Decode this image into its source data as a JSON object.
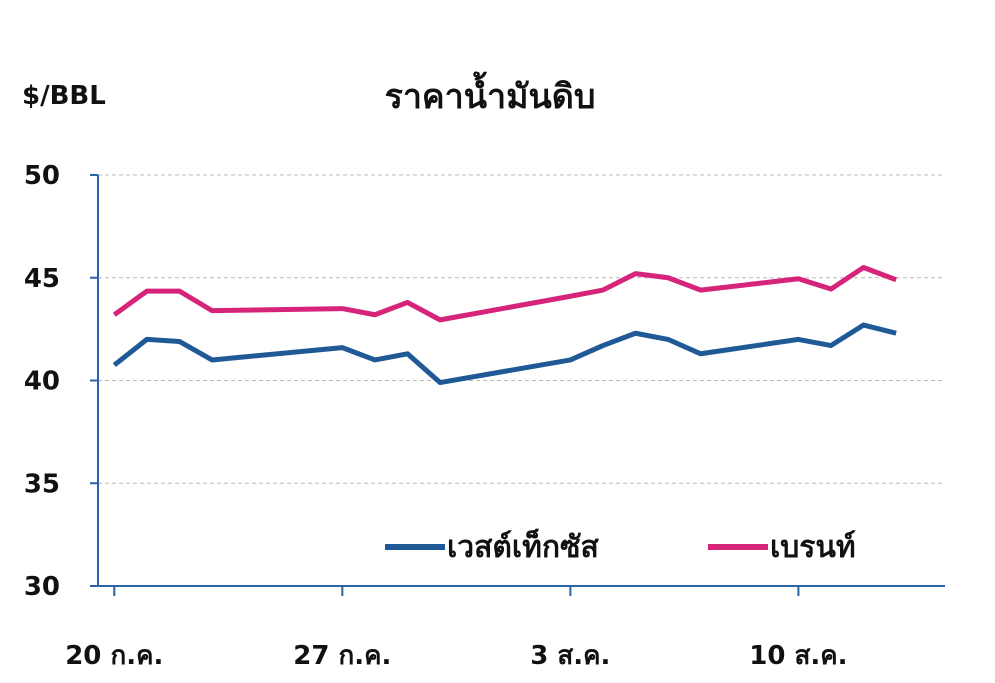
{
  "chart_data": {
    "type": "line",
    "title": "ราคาน้ำมันดิบ",
    "y_label": "$/BBL",
    "x": [
      20,
      21,
      22,
      23,
      27,
      28,
      29,
      30,
      34,
      35,
      36,
      37,
      38,
      41,
      42,
      43,
      44
    ],
    "xlim": [
      19.5,
      45.5
    ],
    "xticks": [
      {
        "value": 20,
        "label": "20 ก.ค."
      },
      {
        "value": 27,
        "label": "27 ก.ค."
      },
      {
        "value": 34,
        "label": "3 ส.ค."
      },
      {
        "value": 41,
        "label": "10 ส.ค."
      }
    ],
    "ylim": [
      30,
      50
    ],
    "yticks": [
      30,
      35,
      40,
      45,
      50
    ],
    "grid": true,
    "legend": "lower right",
    "series": [
      {
        "name": "เวสต์เท็กซัส",
        "color": "#1f5a96",
        "values": [
          40.75,
          42.0,
          41.9,
          41.0,
          41.6,
          41.0,
          41.3,
          39.9,
          41.0,
          41.7,
          42.3,
          42.0,
          41.3,
          42.0,
          41.7,
          42.7,
          42.3
        ]
      },
      {
        "name": "เบรนท์",
        "color": "#d6247a",
        "values": [
          43.2,
          44.35,
          44.35,
          43.4,
          43.5,
          43.2,
          43.8,
          42.95,
          44.1,
          44.4,
          45.2,
          45.0,
          44.4,
          44.95,
          44.45,
          45.5,
          44.9
        ]
      }
    ]
  }
}
